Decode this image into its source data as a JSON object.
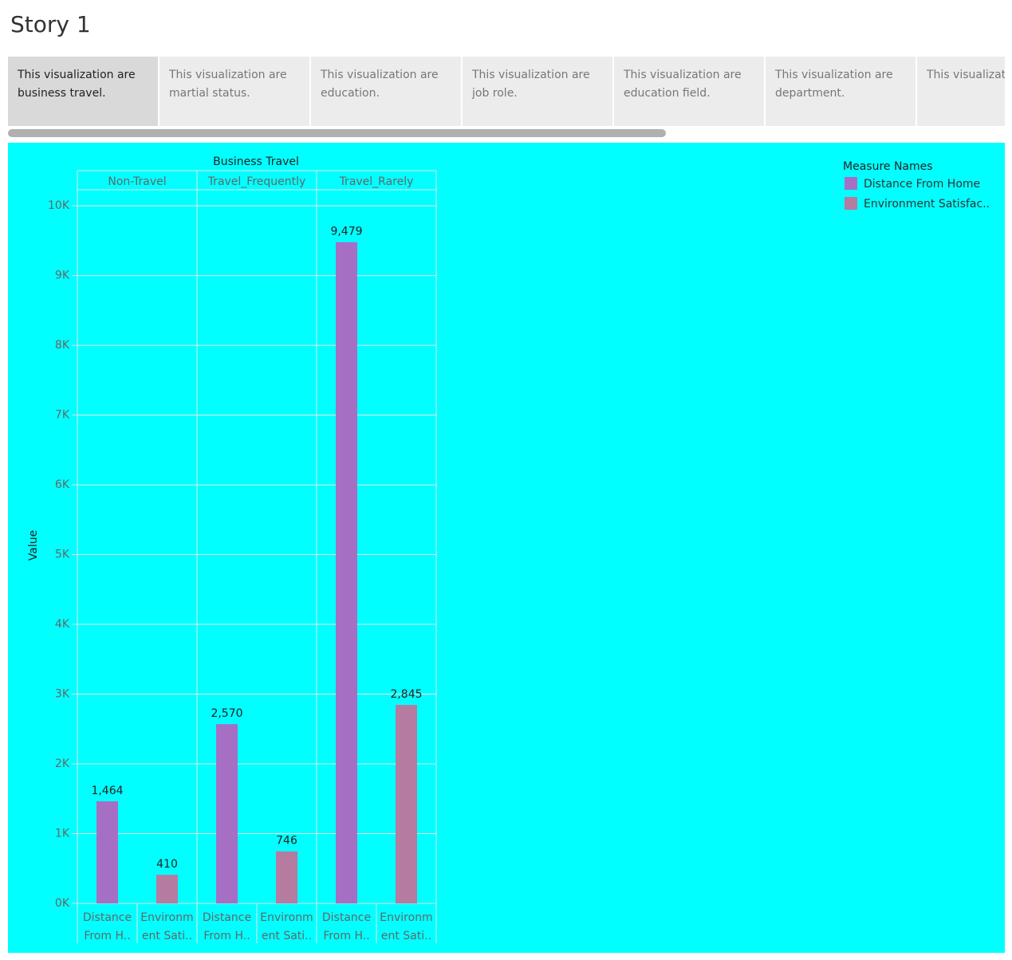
{
  "story": {
    "title": "Story 1",
    "tabs": [
      "This visualization are business travel.",
      "This visualization are martial status.",
      "This visualization are education.",
      "This visualization are job role.",
      "This visualization are education field.",
      "This visualization are department.",
      "This visualizatio.."
    ]
  },
  "chart_data": {
    "type": "bar",
    "title": "Business Travel",
    "categories": [
      "Non-Travel",
      "Travel_Frequently",
      "Travel_Rarely"
    ],
    "x_tick_labels": [
      [
        "Distance",
        "From H.."
      ],
      [
        "Environm",
        "ent Sati.."
      ]
    ],
    "ylabel": "Value",
    "legend_title": "Measure Names",
    "legend": "top-right",
    "grid": true,
    "ylim": [
      0,
      10230
    ],
    "yticks": [
      {
        "value": 0,
        "label": "0K"
      },
      {
        "value": 1000,
        "label": "1K"
      },
      {
        "value": 2000,
        "label": "2K"
      },
      {
        "value": 3000,
        "label": "3K"
      },
      {
        "value": 4000,
        "label": "4K"
      },
      {
        "value": 5000,
        "label": "5K"
      },
      {
        "value": 6000,
        "label": "6K"
      },
      {
        "value": 7000,
        "label": "7K"
      },
      {
        "value": 8000,
        "label": "8K"
      },
      {
        "value": 9000,
        "label": "9K"
      },
      {
        "value": 10000,
        "label": "10K"
      }
    ],
    "series": [
      {
        "name": "Distance From Home",
        "color": "#a56fc4",
        "values": [
          1464,
          2570,
          9479
        ],
        "value_labels": [
          "1,464",
          "2,570",
          "9,479"
        ]
      },
      {
        "name": "Environment Satisfac..",
        "color": "#b57ba0",
        "values": [
          410,
          746,
          2845
        ],
        "value_labels": [
          "410",
          "746",
          "2,845"
        ]
      }
    ]
  }
}
